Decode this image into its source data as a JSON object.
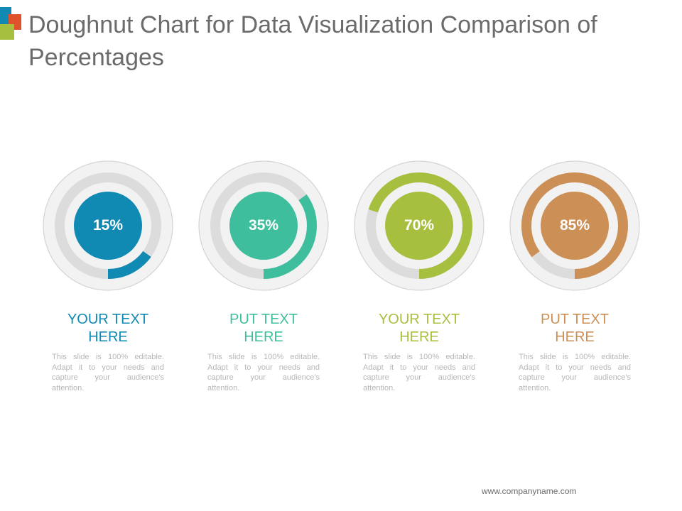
{
  "title": "Doughnut Chart for Data Visualization Comparison of Percentages",
  "colors": {
    "blue": "#1089b3",
    "teal": "#3fbe9d",
    "green": "#a7bf3e",
    "orange": "#cc8f55",
    "track": "#dcdcdc",
    "title": "#6b6b6b",
    "description": "#b7b7b7",
    "logo_orange": "#e0522b"
  },
  "chart_data": {
    "type": "pie",
    "charts": [
      {
        "value": 15,
        "value_label": "15%",
        "label": "YOUR TEXT\nHERE",
        "description": "This slide is 100% editable. Adapt it to your needs and capture your audience's attention.",
        "color": "#1089b3"
      },
      {
        "value": 35,
        "value_label": "35%",
        "label": "PUT TEXT\nHERE",
        "description": "This slide is 100% editable. Adapt it to your needs and capture your audience's attention.",
        "color": "#3fbe9d"
      },
      {
        "value": 70,
        "value_label": "70%",
        "label": "YOUR TEXT\nHERE",
        "description": "This slide is 100% editable. Adapt it to your needs and capture your audience's attention.",
        "color": "#a7bf3e"
      },
      {
        "value": 85,
        "value_label": "85%",
        "label": "PUT TEXT\nHERE",
        "description": "This slide is 100% editable. Adapt it to your needs and capture your audience's attention.",
        "color": "#cc8f55"
      }
    ]
  },
  "footer": "www.companyname.com"
}
